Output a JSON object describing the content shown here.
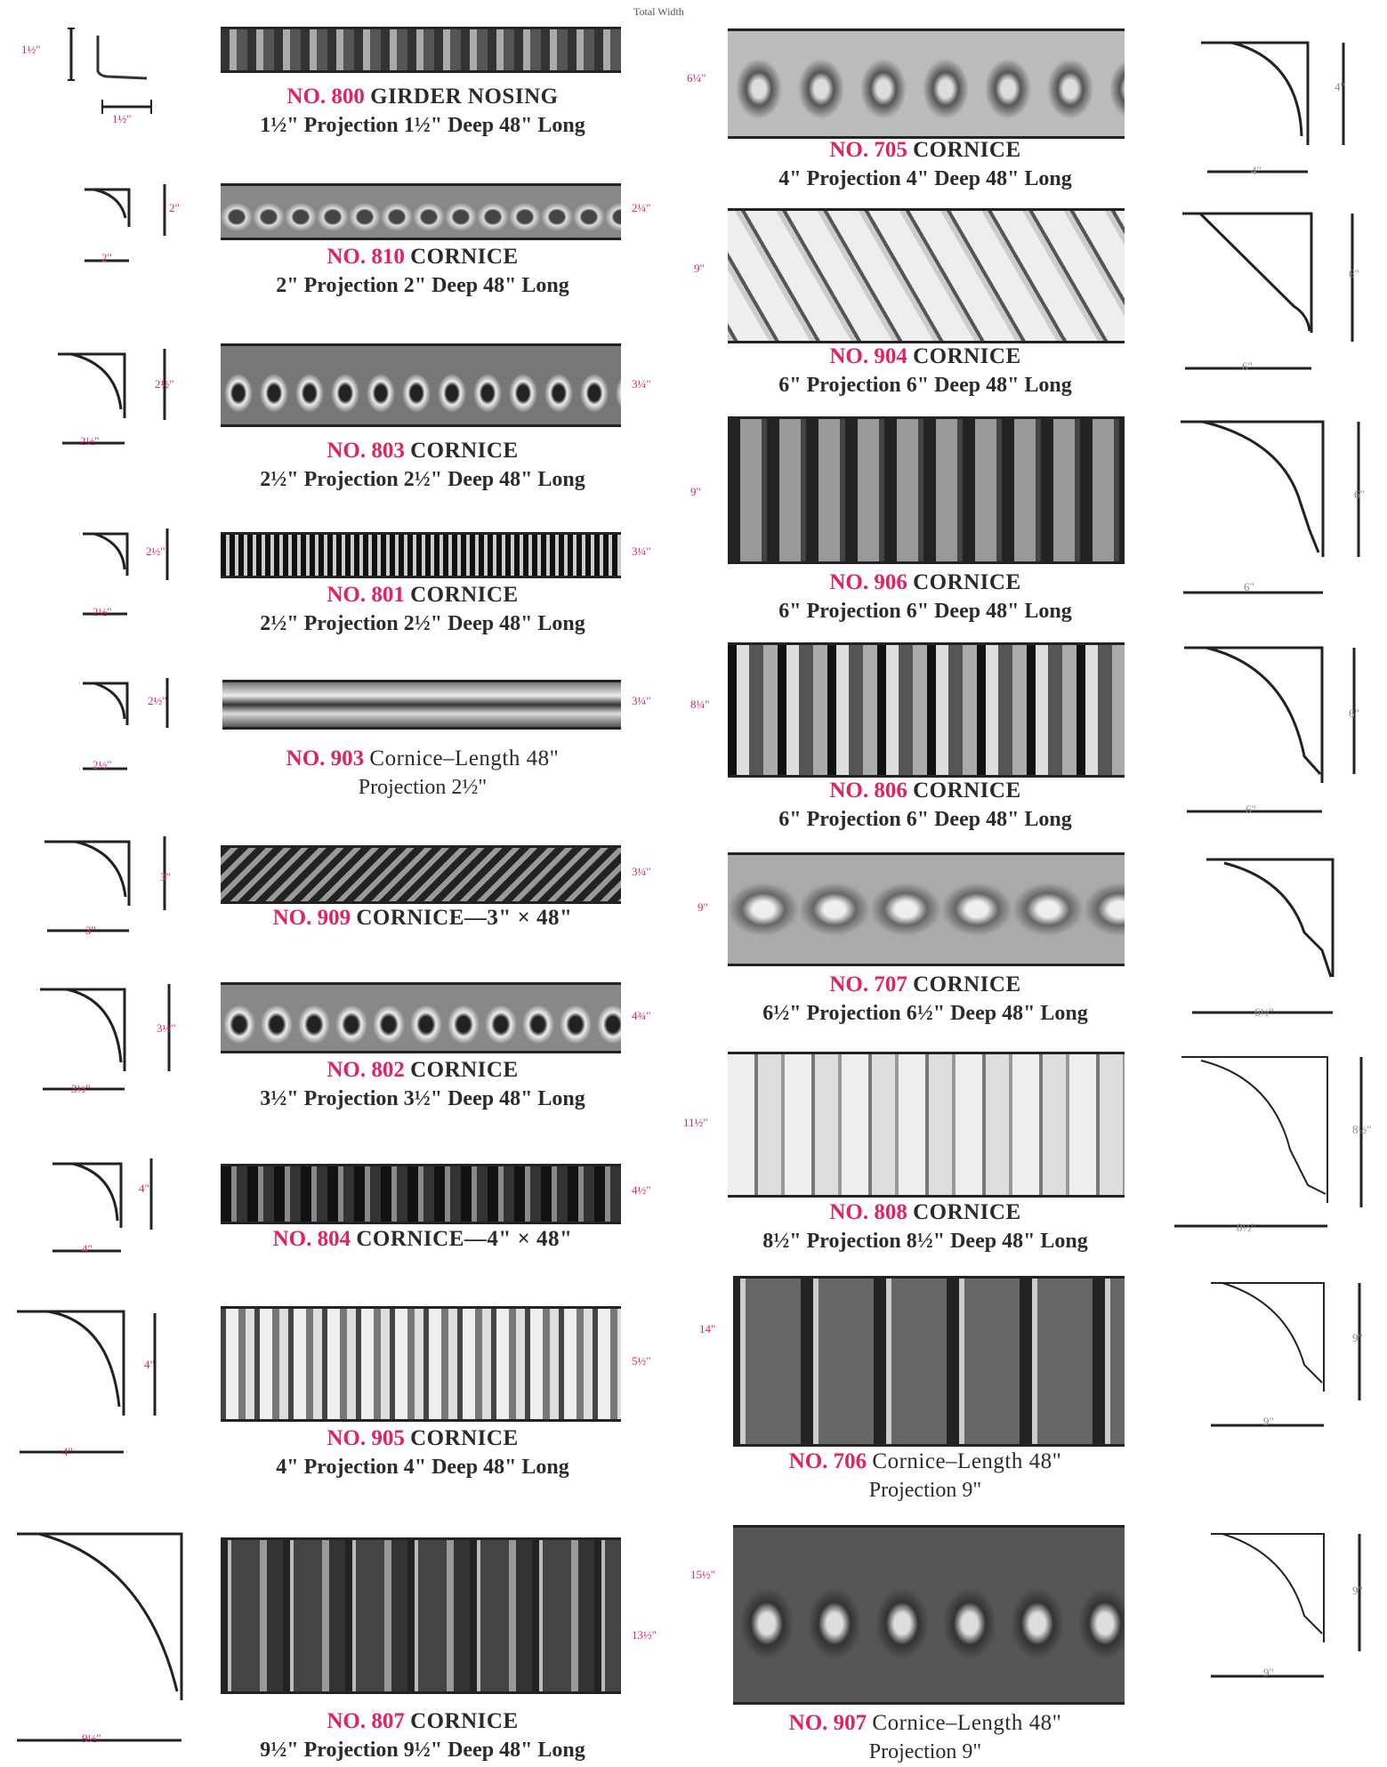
{
  "header": {
    "total_width_label": "Total Width"
  },
  "colors": {
    "accent": "#e0245e",
    "text": "#2b2b2b",
    "metal_dark": "#2a2a2a",
    "metal_light": "#d9d9d9"
  },
  "items": [
    {
      "id": "800",
      "number": "NO. 800",
      "name": "GIRDER NOSING",
      "line2": "1½\" Projection 1½\" Deep 48\" Long",
      "profile_h": "1½\"",
      "profile_w": "1½\"",
      "strip_h": ""
    },
    {
      "id": "810",
      "number": "NO. 810",
      "name": "CORNICE",
      "line2": "2\" Projection 2\" Deep 48\" Long",
      "profile_h": "2\"",
      "profile_w": "2\"",
      "strip_h": "2¼\""
    },
    {
      "id": "803",
      "number": "NO. 803",
      "name": "CORNICE",
      "line2": "2½\" Projection 2½\" Deep 48\" Long",
      "profile_h": "2½\"",
      "profile_w": "2½\"",
      "strip_h": "3¼\""
    },
    {
      "id": "801",
      "number": "NO. 801",
      "name": "CORNICE",
      "line2": "2½\" Projection 2½\" Deep 48\" Long",
      "profile_h": "2½\"",
      "profile_w": "2½\"",
      "strip_h": "3¼\""
    },
    {
      "id": "903",
      "number": "NO. 903",
      "name": "Cornice–Length 48\"",
      "line2": "Projection 2½\"",
      "profile_h": "2½\"",
      "profile_w": "2½\"",
      "strip_h": "3¼\""
    },
    {
      "id": "909",
      "number": "NO. 909",
      "name": "CORNICE—3\" × 48\"",
      "line2": "",
      "profile_h": "3\"",
      "profile_w": "3\"",
      "strip_h": "3¼\""
    },
    {
      "id": "802",
      "number": "NO. 802",
      "name": "CORNICE",
      "line2": "3½\" Projection 3½\" Deep 48\" Long",
      "profile_h": "3½\"",
      "profile_w": "3½\"",
      "strip_h": "4¾\""
    },
    {
      "id": "804",
      "number": "NO. 804",
      "name": "CORNICE—4\" × 48\"",
      "line2": "",
      "profile_h": "4\"",
      "profile_w": "4\"",
      "strip_h": "4½\""
    },
    {
      "id": "905",
      "number": "NO. 905",
      "name": "CORNICE",
      "line2": "4\" Projection 4\" Deep 48\" Long",
      "profile_h": "4\"",
      "profile_w": "4\"",
      "strip_h": "5½\""
    },
    {
      "id": "807",
      "number": "NO. 807",
      "name": "CORNICE",
      "line2": "9½\" Projection 9½\" Deep 48\" Long",
      "profile_h": "",
      "profile_w": "9½\"",
      "strip_h": "13½\""
    },
    {
      "id": "705",
      "number": "NO. 705",
      "name": "CORNICE",
      "line2": "4\" Projection 4\" Deep 48\" Long",
      "profile_h": "4\"",
      "profile_w": "4\"",
      "strip_h": "6¼\""
    },
    {
      "id": "904",
      "number": "NO. 904",
      "name": "CORNICE",
      "line2": "6\" Projection 6\" Deep 48\" Long",
      "profile_h": "6\"",
      "profile_w": "6\"",
      "strip_h": "9\""
    },
    {
      "id": "906",
      "number": "NO. 906",
      "name": "CORNICE",
      "line2": "6\" Projection 6\" Deep 48\" Long",
      "profile_h": "6\"",
      "profile_w": "6\"",
      "strip_h": "9\""
    },
    {
      "id": "806",
      "number": "NO. 806",
      "name": "CORNICE",
      "line2": "6\" Projection 6\" Deep 48\" Long",
      "profile_h": "6\"",
      "profile_w": "6\"",
      "strip_h": "8¼\""
    },
    {
      "id": "707",
      "number": "NO. 707",
      "name": "CORNICE",
      "line2": "6½\" Projection 6½\" Deep 48\" Long",
      "profile_h": "",
      "profile_w": "6½\"",
      "strip_h": "9\""
    },
    {
      "id": "808",
      "number": "NO. 808",
      "name": "CORNICE",
      "line2": "8½\" Projection 8½\" Deep 48\" Long",
      "profile_h": "8½\"",
      "profile_w": "8½\"",
      "strip_h": "11½\""
    },
    {
      "id": "706",
      "number": "NO. 706",
      "name": "Cornice–Length 48\"",
      "line2": "Projection 9\"",
      "profile_h": "9\"",
      "profile_w": "9\"",
      "strip_h": "14\""
    },
    {
      "id": "907",
      "number": "NO. 907",
      "name": "Cornice–Length 48\"",
      "line2": "Projection 9\"",
      "profile_h": "9\"",
      "profile_w": "9\"",
      "strip_h": "15½\""
    }
  ]
}
